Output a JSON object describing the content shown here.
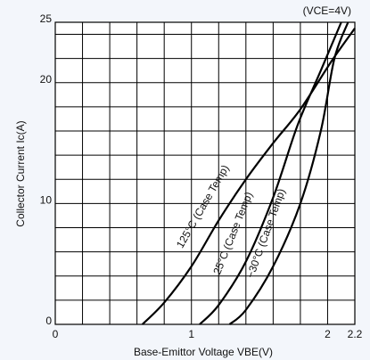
{
  "chart_data": {
    "type": "line",
    "annotation": "(VCE=4V)",
    "xlabel": "Base-Emittor Voltage VBE(V)",
    "ylabel": "Collector Current Ic(A)",
    "xlim": [
      0,
      2.2
    ],
    "ylim": [
      0,
      25
    ],
    "xticks": [
      0,
      1,
      2,
      2.2
    ],
    "yticks": [
      0,
      10,
      20,
      25
    ],
    "xgrid": [
      0.2,
      0.4,
      0.6,
      0.8,
      1.2,
      1.4,
      1.6,
      1.8
    ],
    "ygrid": [
      2,
      4,
      6,
      8,
      12,
      14,
      16,
      18,
      22,
      24
    ],
    "grid": true,
    "series": [
      {
        "name": "125°C (Case Temp)",
        "color": "#000000",
        "x": [
          0.64,
          0.8,
          1.0,
          1.2,
          1.4,
          1.6,
          1.8,
          2.03,
          2.2
        ],
        "values": [
          0,
          1.8,
          4.8,
          8.6,
          12,
          15,
          17.8,
          21.8,
          24.5
        ]
      },
      {
        "name": "25°C (Case Temp)",
        "color": "#000000",
        "x": [
          1.06,
          1.2,
          1.4,
          1.6,
          1.78,
          1.95,
          2.1
        ],
        "values": [
          0,
          1.6,
          5.2,
          10.5,
          16.5,
          21,
          25
        ]
      },
      {
        "name": "−30°C (Case Temp)",
        "color": "#000000",
        "x": [
          1.28,
          1.4,
          1.6,
          1.8,
          1.95,
          2.05,
          2.15
        ],
        "values": [
          0,
          1.2,
          4.8,
          10,
          16,
          22,
          25
        ]
      }
    ]
  }
}
